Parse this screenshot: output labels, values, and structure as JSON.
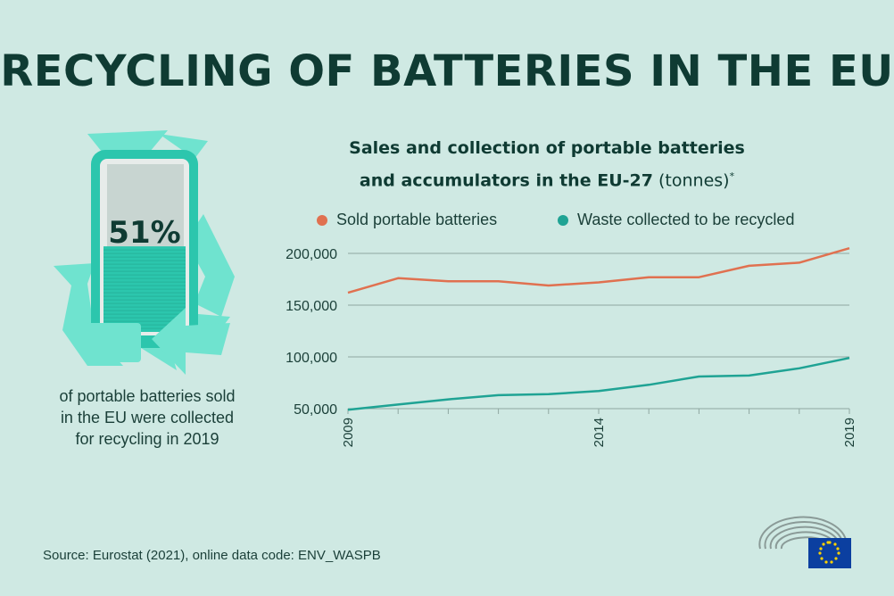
{
  "title": "RECYCLING OF BATTERIES IN THE EU",
  "left_panel": {
    "percentage": "51%",
    "fill_fraction": 0.51,
    "caption_lines": [
      "of portable batteries sold",
      "in the EU were collected",
      "for recycling in 2019"
    ]
  },
  "source": "Source: Eurostat (2021), online data code: ENV_WASPB",
  "colors": {
    "background": "#cfe9e3",
    "sold": "#e07150",
    "collected": "#1fa394",
    "title": "#0f3b33",
    "recycle_arrows": "#6fe3cf",
    "battery_frame": "#2cc6ad"
  },
  "chart_data": {
    "type": "line",
    "title_line1": "Sales and collection of portable batteries",
    "title_line2_bold": "and accumulators in the EU-27",
    "title_line2_rest": " (tonnes)",
    "title_marker": "*",
    "x": [
      2009,
      2010,
      2011,
      2012,
      2013,
      2014,
      2015,
      2016,
      2017,
      2018,
      2019
    ],
    "x_tick_labels": [
      "2009",
      "2014",
      "2019"
    ],
    "y_tick_labels": [
      "200,000",
      "150,000",
      "100,000",
      "50,000"
    ],
    "y_ticks": [
      200000,
      150000,
      100000,
      50000
    ],
    "ylim": [
      50000,
      200000
    ],
    "grid": true,
    "legend_position": "top",
    "series": [
      {
        "name": "Sold portable batteries",
        "color": "#e07150",
        "values": [
          162000,
          176000,
          173000,
          173000,
          169000,
          172000,
          177000,
          177000,
          188000,
          191000,
          205000
        ]
      },
      {
        "name": "Waste collected to be recycled",
        "color": "#1fa394",
        "values": [
          49000,
          54000,
          59000,
          63000,
          64000,
          67000,
          73000,
          81000,
          82000,
          89000,
          99000
        ]
      }
    ]
  }
}
